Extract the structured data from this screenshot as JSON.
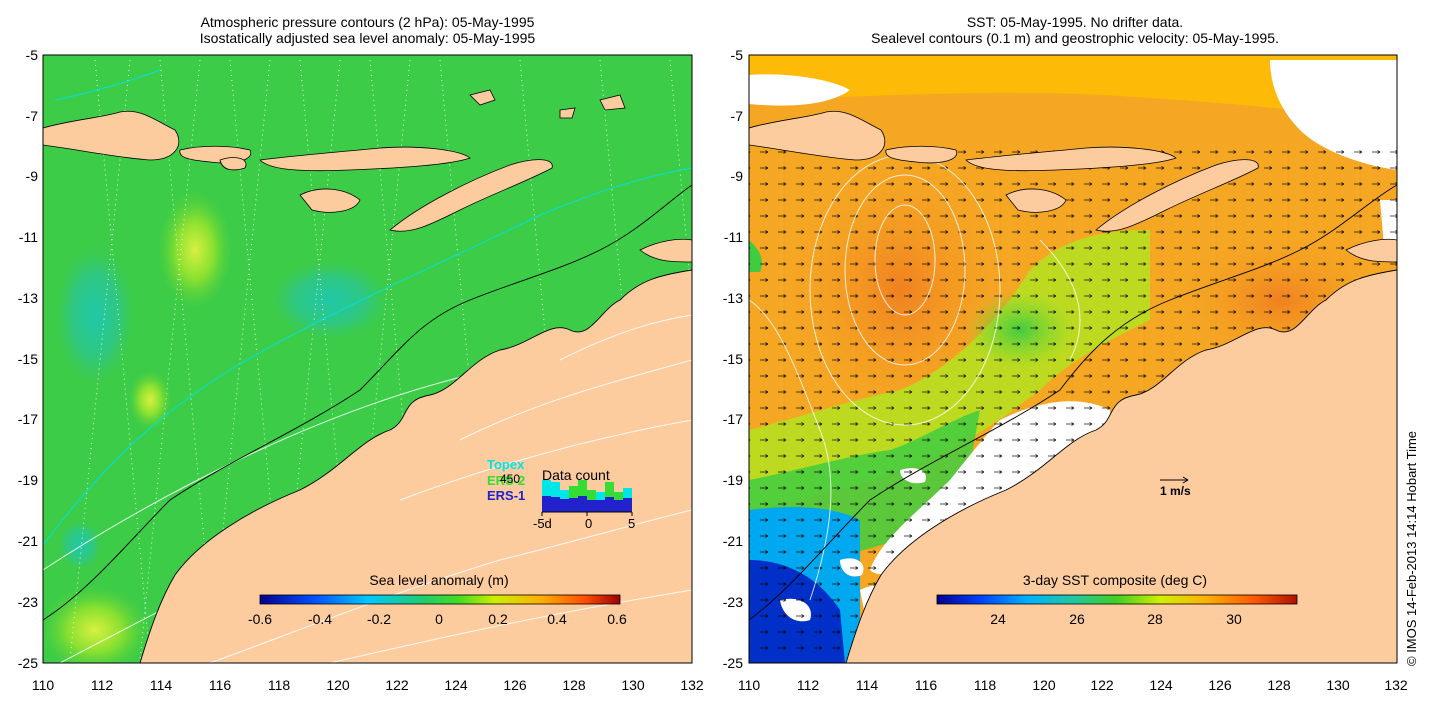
{
  "left_panel": {
    "title_line1": "Atmospheric pressure contours (2 hPa): 05-May-1995",
    "title_line2": "Isostatically adjusted sea level anomaly: 05-May-1995",
    "colorbar": {
      "label": "Sea level anomaly (m)",
      "ticks": [
        "-0.6",
        "-0.4",
        "-0.2",
        "0",
        "0.2",
        "0.4",
        "0.6"
      ]
    },
    "legend": {
      "topex": "Topex",
      "ers2": "ERS-2",
      "ers1": "ERS-1",
      "data_count_label": "Data count",
      "count_value": "450",
      "hist_ticks": [
        "-5d",
        "0",
        "5"
      ],
      "colors": {
        "topex": "#00e5e5",
        "ers2": "#33dd33",
        "ers1": "#2222cc"
      }
    }
  },
  "right_panel": {
    "title_line1": "SST: 05-May-1995. No drifter data.",
    "title_line2": "Sealevel contours (0.1 m) and geostrophic velocity: 05-May-1995.",
    "colorbar": {
      "label": "3-day SST composite (deg C)",
      "ticks": [
        "24",
        "26",
        "28",
        "30"
      ]
    },
    "velocity_scale_label": "1 m/s"
  },
  "axes": {
    "y_ticks": [
      "-5",
      "-7",
      "-9",
      "-11",
      "-13",
      "-15",
      "-17",
      "-19",
      "-21",
      "-23",
      "-25"
    ],
    "x_ticks": [
      "110",
      "112",
      "114",
      "116",
      "118",
      "120",
      "122",
      "124",
      "126",
      "128",
      "130",
      "132"
    ]
  },
  "credit": "© IMOS 14-Feb-2013 14:14 Hobart Time",
  "colors": {
    "land": "#fccb9e",
    "ocean_base": "#33cc44",
    "sst_base": "#f5a623"
  }
}
